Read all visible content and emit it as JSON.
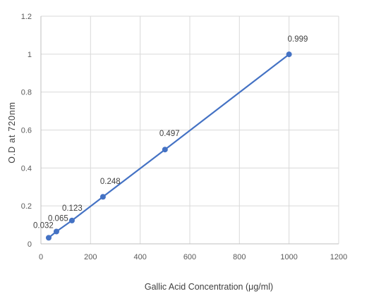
{
  "chart_data": {
    "type": "scatter",
    "title": "",
    "xlabel": "Gallic Acid Concentration (μg/ml)",
    "ylabel": "O.D at 720nm",
    "xlim": [
      0,
      1200
    ],
    "ylim": [
      0,
      1.2
    ],
    "x_ticks": [
      0,
      200,
      400,
      600,
      800,
      1000,
      1200
    ],
    "y_ticks": [
      0,
      0.2,
      0.4,
      0.6,
      0.8,
      1,
      1.2
    ],
    "grid": true,
    "legend": "none",
    "series": [
      {
        "x": [
          31.25,
          62.5,
          125,
          250,
          500,
          1000
        ],
        "y": [
          0.032,
          0.065,
          0.123,
          0.248,
          0.497,
          0.999
        ],
        "data_labels": [
          "0.032",
          "0.065",
          "0.123",
          "0.248",
          "0.497",
          "0.999"
        ],
        "color": "#4472c4",
        "connected": true
      }
    ]
  }
}
